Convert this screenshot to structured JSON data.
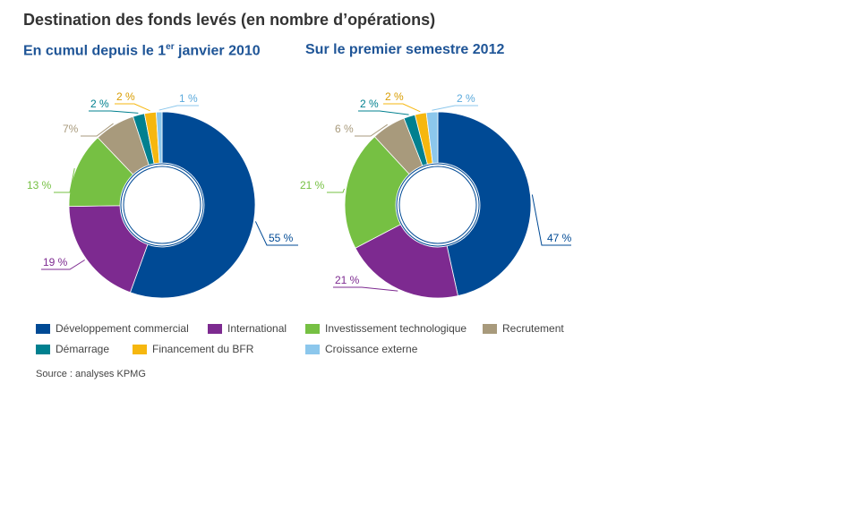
{
  "header": {
    "title": "Destination des fonds levés (en nombre d’opérations)",
    "subtitle_left_pre": "En cumul depuis le 1",
    "subtitle_left_sup": "er",
    "subtitle_left_post": " janvier 2010",
    "subtitle_right": "Sur le premier semestre 2012"
  },
  "source": "Source : analyses KPMG",
  "categories": [
    {
      "name": "Développement commercial",
      "color": "#004a95"
    },
    {
      "name": "International",
      "color": "#7d2a90"
    },
    {
      "name": "Investissement technologique",
      "color": "#76c043"
    },
    {
      "name": "Recrutement",
      "color": "#a89a7c"
    },
    {
      "name": "Démarrage",
      "color": "#00808f"
    },
    {
      "name": "Financement du BFR",
      "color": "#f6b70f"
    },
    {
      "name": "Croissance externe",
      "color": "#8cc7ec"
    }
  ],
  "chart_data": [
    {
      "type": "pie",
      "title": "En cumul depuis le 1er janvier 2010",
      "categories": [
        "Développement commercial",
        "International",
        "Investissement technologique",
        "Recrutement",
        "Démarrage",
        "Financement du BFR",
        "Croissance externe"
      ],
      "values": [
        55,
        19,
        13,
        7,
        2,
        2,
        1
      ],
      "labels": [
        "55 %",
        "19 %",
        "13 %",
        "7%",
        "2 %",
        "2 %",
        "1 %"
      ],
      "donut": true
    },
    {
      "type": "pie",
      "title": "Sur le premier semestre 2012",
      "categories": [
        "Développement commercial",
        "International",
        "Investissement technologique",
        "Recrutement",
        "Démarrage",
        "Financement du BFR",
        "Croissance externe"
      ],
      "values": [
        47,
        21,
        21,
        6,
        2,
        2,
        2
      ],
      "labels": [
        "47 %",
        "21 %",
        "21 %",
        "6 %",
        "2 %",
        "2 %",
        "2 %"
      ],
      "donut": true
    }
  ]
}
